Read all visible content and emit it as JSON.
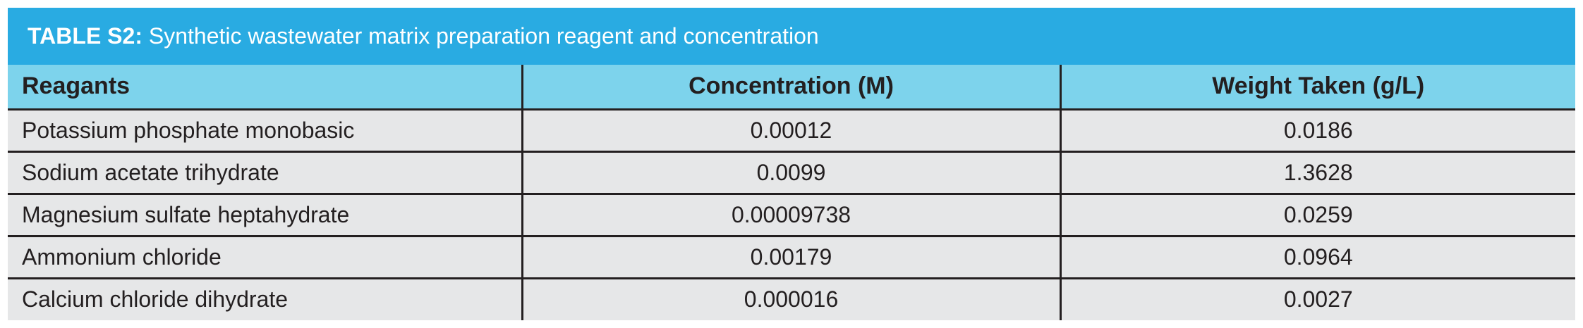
{
  "table": {
    "label": "TABLE S2:",
    "title": "Synthetic wastewater matrix preparation reagent and concentration",
    "headers": [
      "Reagants",
      "Concentration (M)",
      "Weight Taken (g/L)"
    ],
    "rows": [
      [
        "Potassium phosphate monobasic",
        "0.00012",
        "0.0186"
      ],
      [
        "Sodium acetate trihydrate",
        "0.0099",
        "1.3628"
      ],
      [
        "Magnesium sulfate heptahydrate",
        "0.00009738",
        "0.0259"
      ],
      [
        "Ammonium chloride",
        "0.00179",
        "0.0964"
      ],
      [
        "Calcium chloride dihydrate",
        "0.000016",
        "0.0027"
      ]
    ]
  }
}
